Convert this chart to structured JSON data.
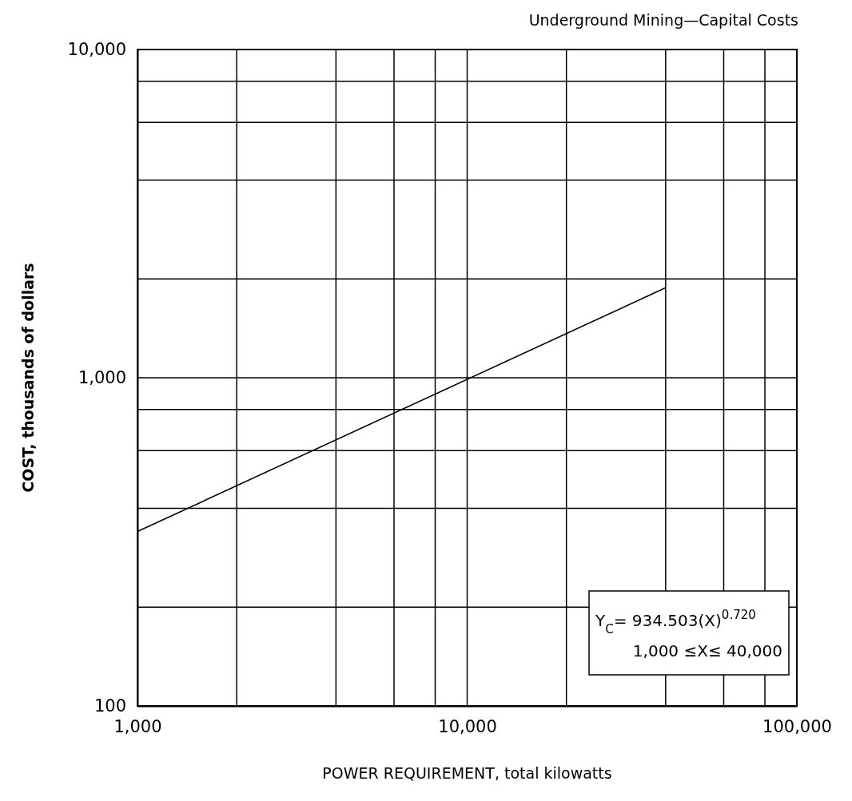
{
  "chart_data": {
    "type": "line",
    "title": "Underground Mining—Capital Costs",
    "xlabel": "POWER REQUIREMENT, total kilowatts",
    "ylabel": "COST, thousands of dollars",
    "log": "xy",
    "grid": true,
    "marker": "none",
    "line_style": "solid",
    "xlim": [
      1000,
      100000
    ],
    "ylim": [
      100,
      10000
    ],
    "xticks": [
      {
        "value": 1000,
        "label": "1,000"
      },
      {
        "value": 2000,
        "label": null
      },
      {
        "value": 4000,
        "label": null
      },
      {
        "value": 6000,
        "label": null
      },
      {
        "value": 8000,
        "label": null
      },
      {
        "value": 10000,
        "label": "10,000"
      },
      {
        "value": 20000,
        "label": null
      },
      {
        "value": 40000,
        "label": null
      },
      {
        "value": 60000,
        "label": null
      },
      {
        "value": 80000,
        "label": null
      },
      {
        "value": 100000,
        "label": "100,000"
      }
    ],
    "yticks": [
      100,
      {
        "value": 200,
        "label": null
      },
      {
        "value": 400,
        "label": null
      },
      {
        "value": 600,
        "label": null
      },
      {
        "value": 800,
        "label": null
      },
      {
        "value": 1000,
        "label": "1,000"
      },
      {
        "value": 2000,
        "label": null
      },
      {
        "value": 4000,
        "label": null
      },
      {
        "value": 6000,
        "label": null
      },
      {
        "value": 8000,
        "label": null
      },
      {
        "value": 10000,
        "label": "10,000"
      }
    ],
    "series": [
      {
        "color": "#000000",
        "x": [
          1000,
          40000
        ],
        "values": [
          340,
          1880
        ]
      }
    ],
    "annotations": [
      "Y$_{C}$= 934.503(X)$^{0.720}$",
      "1,000 ≤X≤ 40,000"
    ]
  }
}
